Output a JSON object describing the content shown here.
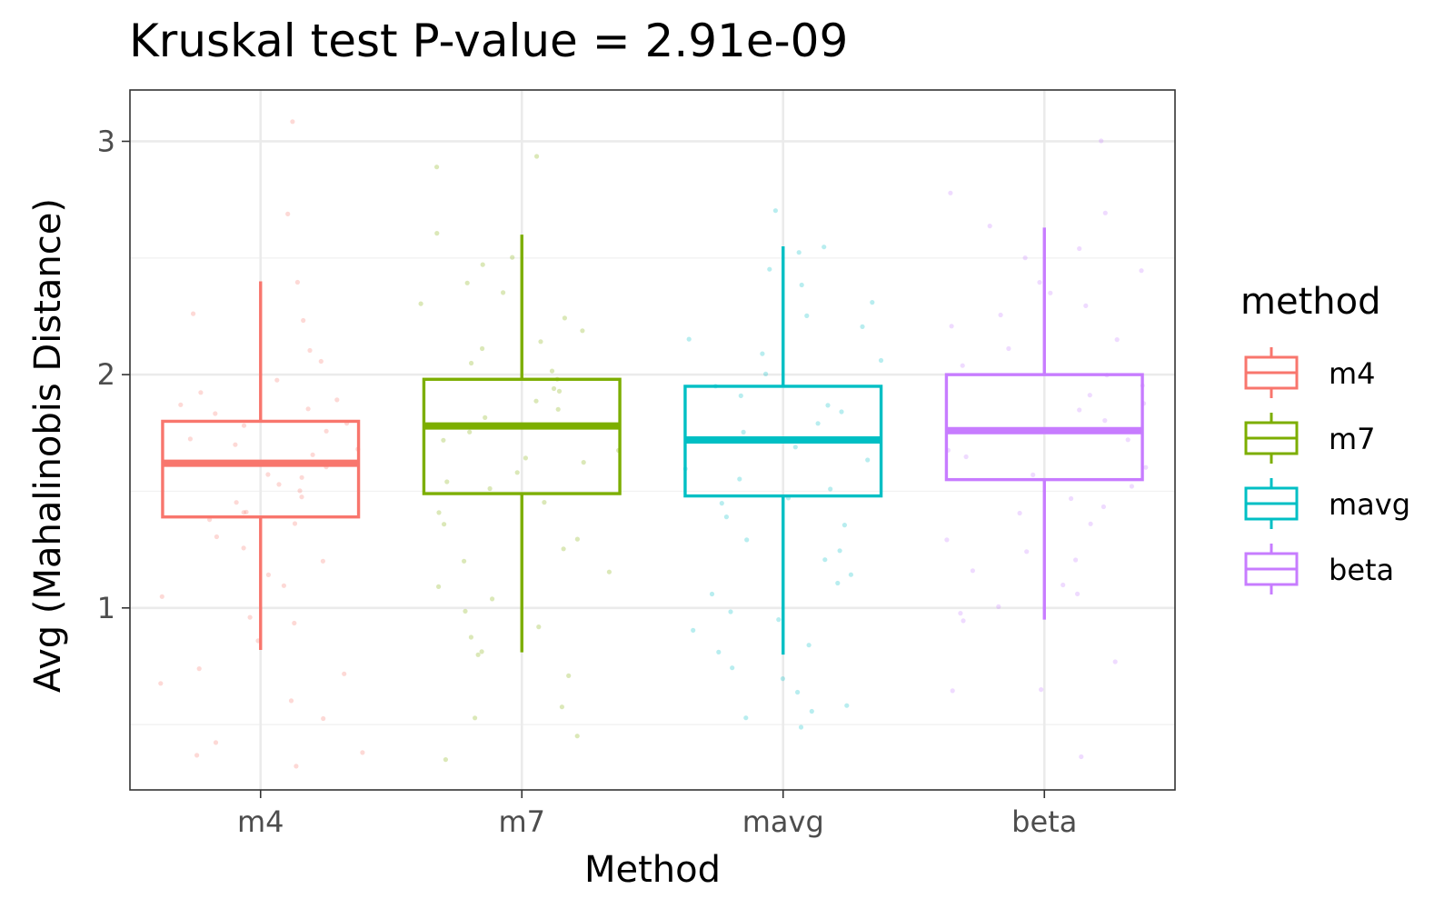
{
  "chart_data": {
    "type": "boxplot",
    "title": "Kruskal test P-value = 2.91e-09",
    "xlabel": "Method",
    "ylabel": "Avg (Mahalinobis Distance)",
    "categories": [
      "m4",
      "m7",
      "mavg",
      "beta"
    ],
    "ylim": [
      0.22,
      3.22
    ],
    "yticks": [
      1,
      2,
      3
    ],
    "ytick_labels": [
      "1",
      "2",
      "3"
    ],
    "grid": true,
    "legend": {
      "title": "method",
      "position": "right",
      "entries": [
        "m4",
        "m7",
        "mavg",
        "beta"
      ]
    },
    "series": [
      {
        "category": "m4",
        "color": "#F8766D",
        "whisker_low": 0.82,
        "q1": 1.39,
        "median": 1.62,
        "q3": 1.8,
        "whisker_high": 2.4
      },
      {
        "category": "m7",
        "color": "#7CAE00",
        "whisker_low": 0.81,
        "q1": 1.49,
        "median": 1.78,
        "q3": 1.98,
        "whisker_high": 2.6
      },
      {
        "category": "mavg",
        "color": "#00BFC4",
        "whisker_low": 0.8,
        "q1": 1.48,
        "median": 1.72,
        "q3": 1.95,
        "whisker_high": 2.55
      },
      {
        "category": "beta",
        "color": "#C77CFF",
        "whisker_low": 0.95,
        "q1": 1.55,
        "median": 1.76,
        "q3": 2.0,
        "whisker_high": 2.63
      }
    ],
    "points": {
      "m4": [
        3.08,
        2.7,
        2.4,
        2.27,
        2.24,
        2.1,
        2.05,
        1.97,
        1.93,
        1.9,
        1.87,
        1.85,
        1.83,
        1.8,
        1.78,
        1.75,
        1.72,
        1.7,
        1.68,
        1.65,
        1.63,
        1.6,
        1.58,
        1.55,
        1.52,
        1.5,
        1.47,
        1.45,
        1.42,
        1.4,
        1.37,
        1.35,
        1.3,
        1.25,
        1.2,
        1.15,
        1.1,
        1.05,
        0.96,
        0.93,
        0.87,
        0.74,
        0.72,
        0.68,
        0.6,
        0.53,
        0.43,
        0.38,
        0.37,
        0.33
      ],
      "m7": [
        2.94,
        2.9,
        2.6,
        2.51,
        2.48,
        2.4,
        2.35,
        2.3,
        2.25,
        2.2,
        2.15,
        2.1,
        2.05,
        2.02,
        1.98,
        1.95,
        1.92,
        1.88,
        1.85,
        1.82,
        1.78,
        1.75,
        1.72,
        1.68,
        1.65,
        1.62,
        1.58,
        1.55,
        1.5,
        1.45,
        1.4,
        1.35,
        1.3,
        1.25,
        1.2,
        1.15,
        1.1,
        1.05,
        0.98,
        0.93,
        0.88,
        0.82,
        0.8,
        0.71,
        0.58,
        0.52,
        0.44,
        0.35
      ],
      "mavg": [
        2.7,
        2.55,
        2.52,
        2.45,
        2.38,
        2.32,
        2.25,
        2.2,
        2.15,
        2.1,
        2.05,
        2.0,
        1.96,
        1.92,
        1.88,
        1.84,
        1.8,
        1.76,
        1.72,
        1.68,
        1.64,
        1.6,
        1.56,
        1.52,
        1.48,
        1.44,
        1.4,
        1.35,
        1.3,
        1.25,
        1.2,
        1.15,
        1.1,
        1.05,
        0.98,
        0.95,
        0.9,
        0.85,
        0.8,
        0.75,
        0.7,
        0.63,
        0.58,
        0.56,
        0.52,
        0.49
      ],
      "beta": [
        3.0,
        2.79,
        2.7,
        2.63,
        2.55,
        2.5,
        2.45,
        2.4,
        2.35,
        2.3,
        2.25,
        2.2,
        2.15,
        2.1,
        2.05,
        2.0,
        1.96,
        1.92,
        1.88,
        1.84,
        1.8,
        1.76,
        1.72,
        1.68,
        1.64,
        1.6,
        1.56,
        1.52,
        1.48,
        1.44,
        1.4,
        1.35,
        1.3,
        1.25,
        1.2,
        1.15,
        1.1,
        1.05,
        1.0,
        0.97,
        0.94,
        0.76,
        0.66,
        0.65,
        0.36
      ]
    }
  }
}
